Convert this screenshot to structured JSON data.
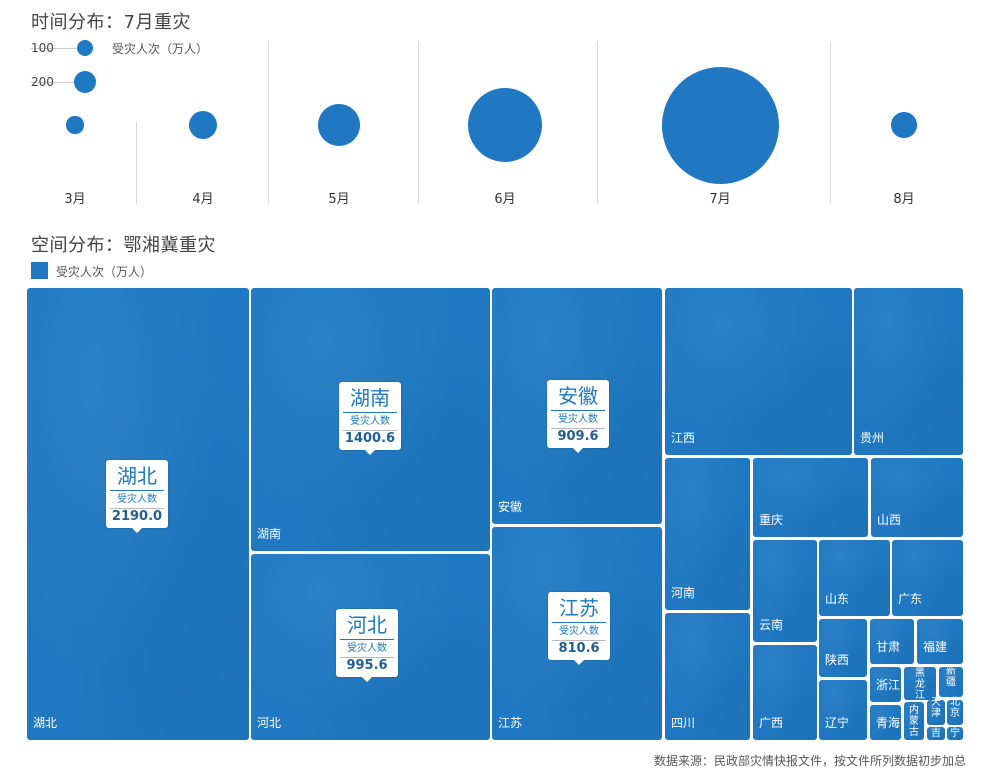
{
  "time_section": {
    "title": "时间分布：7月重灾",
    "legend_label": "受灾人次（万人）",
    "legend_sizes": [
      "100",
      "200"
    ]
  },
  "space_section": {
    "title": "空间分布：鄂湘冀重灾",
    "legend_label": "受灾人次（万人）"
  },
  "callout_metric": "受灾人数",
  "source": "数据来源：民政部灾情快报文件，按文件所列数据初步加总",
  "colors": {
    "tile": "#1f78c1",
    "bubble": "#1f78c1",
    "callout_text": "#1f78c1"
  },
  "chart_data": [
    {
      "type": "scatter",
      "title": "时间分布：7月重灾",
      "categories": [
        "3月",
        "4月",
        "5月",
        "6月",
        "7月",
        "8月"
      ],
      "values": [
        41,
        107,
        241,
        776,
        1900,
        90
      ],
      "size_legend": [
        100,
        200
      ],
      "legend_label": "受灾人次（万人）"
    },
    {
      "type": "treemap",
      "title": "空间分布：鄂湘冀重灾",
      "legend_label": "受灾人次（万人）",
      "labeled_values": [
        {
          "name": "湖北",
          "value": 2190.0
        },
        {
          "name": "湖南",
          "value": 1400.6
        },
        {
          "name": "河北",
          "value": 995.6
        },
        {
          "name": "安徽",
          "value": 909.6
        },
        {
          "name": "江苏",
          "value": 810.6
        }
      ],
      "categories": [
        "湖北",
        "湖南",
        "河北",
        "安徽",
        "江苏",
        "江西",
        "贵州",
        "河南",
        "重庆",
        "山西",
        "四川",
        "云南",
        "山东",
        "广东",
        "广西",
        "陕西",
        "甘肃",
        "福建",
        "辽宁",
        "浙江",
        "黑龙江",
        "新疆",
        "青海",
        "内蒙古",
        "天津",
        "北京",
        "吉",
        "宁"
      ],
      "display_labels": [
        "湖北",
        "湖南",
        "河北",
        "安徽",
        "江苏",
        "江西",
        "贵州",
        "河南",
        "重庆",
        "山西",
        "四川",
        "云南",
        "山东",
        "广东",
        "广西",
        "陕西",
        "甘肃",
        "福建",
        "辽宁",
        "浙江",
        "黑龙江",
        "新疆",
        "青海",
        "内蒙古",
        "天津",
        "北京",
        "吉",
        "宁"
      ]
    }
  ]
}
